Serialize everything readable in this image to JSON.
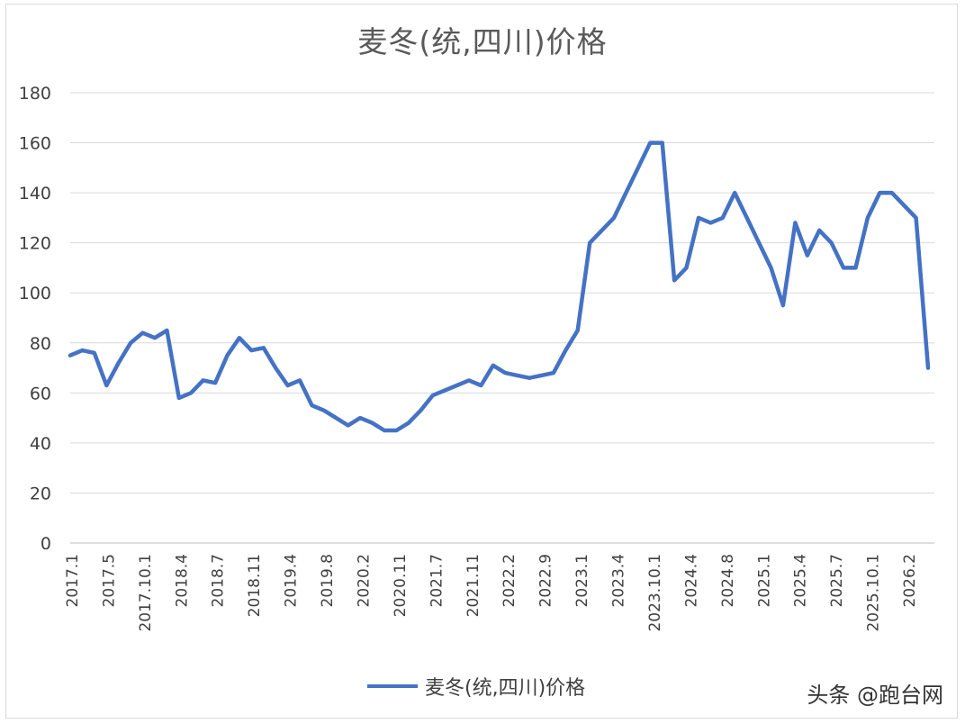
{
  "chart_data": {
    "type": "line",
    "title": "麦冬(统,四川)价格",
    "ylim": [
      0,
      180
    ],
    "yticks": [
      "0",
      "20",
      "40",
      "60",
      "80",
      "100",
      "120",
      "140",
      "160",
      "180"
    ],
    "xticks": [
      "2017.1",
      "2017.5",
      "2017.10.1",
      "2018.4",
      "2018.7",
      "2018.11",
      "2019.4",
      "2019.8",
      "2020.2",
      "2020.11",
      "2021.7",
      "2021.11",
      "2022.2",
      "2022.9",
      "2023.1",
      "2023.4",
      "2023.10.1",
      "2024.4",
      "2024.8",
      "2025.1",
      "2025.4",
      "2025.7",
      "2025.10.1",
      "2026.2"
    ],
    "grid": true,
    "legend_position": "bottom",
    "series": [
      {
        "name": "麦冬(统,四川)价格",
        "color": "#4472c4",
        "values": [
          75,
          77,
          76,
          63,
          72,
          80,
          84,
          82,
          85,
          58,
          60,
          65,
          64,
          75,
          82,
          77,
          78,
          70,
          63,
          65,
          55,
          53,
          50,
          47,
          50,
          48,
          45,
          45,
          48,
          53,
          59,
          61,
          63,
          65,
          63,
          71,
          68,
          67,
          66,
          67,
          68,
          77,
          85,
          120,
          125,
          130,
          140,
          150,
          160,
          160,
          105,
          110,
          130,
          128,
          130,
          140,
          130,
          120,
          110,
          95,
          128,
          115,
          125,
          120,
          110,
          110,
          130,
          140,
          140,
          135,
          130,
          70
        ]
      }
    ]
  },
  "legend": {
    "label": "麦冬(统,四川)价格"
  },
  "watermark": "头条 @跑台网"
}
